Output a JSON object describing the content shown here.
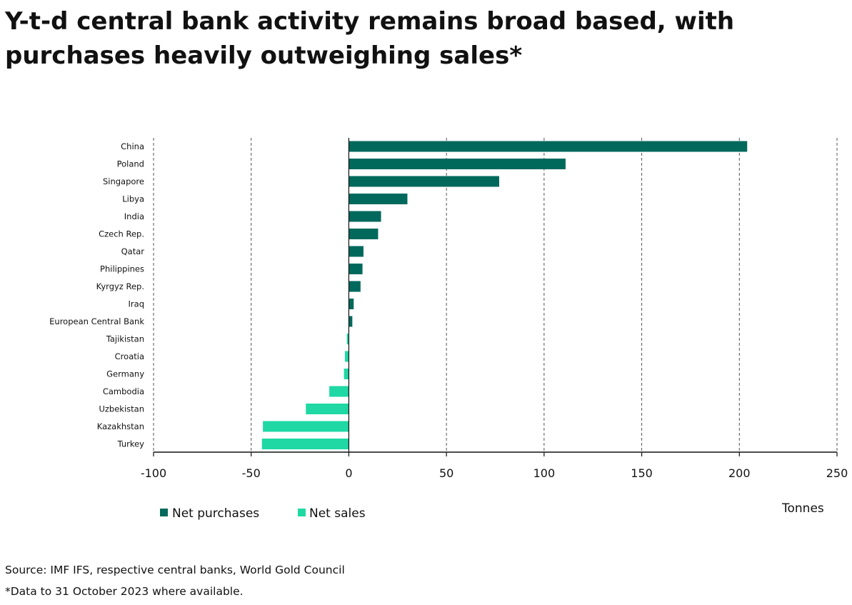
{
  "chart_data": {
    "type": "bar",
    "orientation": "horizontal",
    "title": "Y-t-d central bank activity remains broad based, with purchases heavily outweighing sales*",
    "xlabel": "Tonnes",
    "ylabel": "",
    "xlim": [
      -100,
      250
    ],
    "xticks": [
      -100,
      -50,
      0,
      50,
      100,
      150,
      200,
      250
    ],
    "grid": "vertical dashed",
    "legend_position": "bottom-left",
    "categories": [
      "China",
      "Poland",
      "Singapore",
      "Libya",
      "India",
      "Czech Rep.",
      "Qatar",
      "Philippines",
      "Kyrgyz Rep.",
      "Iraq",
      "European Central Bank",
      "Tajikistan",
      "Croatia",
      "Germany",
      "Cambodia",
      "Uzbekistan",
      "Kazakhstan",
      "Turkey"
    ],
    "series": [
      {
        "name": "Net purchases",
        "color": "#00695c",
        "values": [
          204,
          111,
          77,
          30,
          16.5,
          15,
          7.5,
          7,
          6,
          2.5,
          1.8,
          null,
          null,
          null,
          null,
          null,
          null,
          null
        ]
      },
      {
        "name": "Net sales",
        "color": "#1fd8a4",
        "values": [
          null,
          null,
          null,
          null,
          null,
          null,
          null,
          null,
          null,
          null,
          null,
          -1,
          -2,
          -2.5,
          -10,
          -22,
          -44,
          -44.5
        ]
      }
    ]
  },
  "source": "Source: IMF IFS, respective central banks, World Gold Council",
  "note": "*Data to 31 October 2023 where available."
}
